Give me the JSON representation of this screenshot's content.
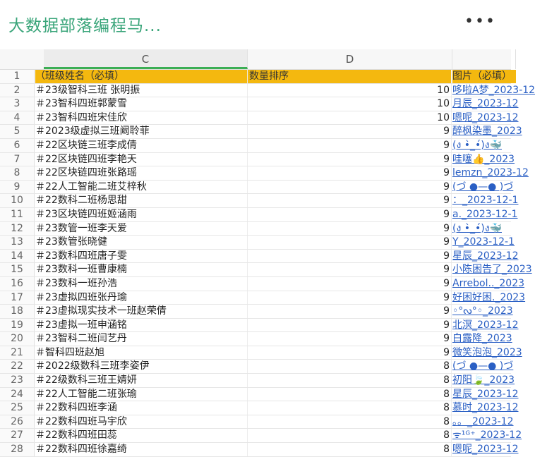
{
  "header": {
    "title": "大数据部落编程马...",
    "more_label": "•••"
  },
  "columns": {
    "c": "C",
    "d": "D"
  },
  "colors": {
    "title": "#3aa57a",
    "header_row": "#f4b80f",
    "link": "#2a5fc4",
    "selected_col": "#3cae55"
  },
  "rows": [
    {
      "n": "1",
      "c": "（班级姓名（必填）",
      "d": "数量排序",
      "e": "图片（必填）"
    },
    {
      "n": "2",
      "c": "＃23级智科三班 张明振",
      "d": "10",
      "e": "哆啦A梦_2023-12"
    },
    {
      "n": "3",
      "c": "＃23智科四班郭蒙雪",
      "d": "10",
      "e": "月辰_2023-12"
    },
    {
      "n": "4",
      "c": "＃23智科四班宋佳欣",
      "d": "10",
      "e": "嗯呢_2023-12"
    },
    {
      "n": "5",
      "c": "＃2023级虚拟三班阚聆菲",
      "d": "9",
      "e": "醉枫染墨_2023"
    },
    {
      "n": "6",
      "c": "＃22区块链三班李成倩",
      "d": "9",
      "e": "(ง •̀_•́)ง🐳"
    },
    {
      "n": "7",
      "c": "＃22区块链四班李艳天",
      "d": "9",
      "e": "哇噻👍_2023"
    },
    {
      "n": "8",
      "c": "＃22区块链四班张路瑶",
      "d": "9",
      "e": "lemzn_2023-12"
    },
    {
      "n": "9",
      "c": "＃22人工智能二班艾梓秋",
      "d": "9",
      "e": "(づ ●—● )づ"
    },
    {
      "n": "10",
      "c": "＃22数科二班杨思甜",
      "d": "9",
      "e": "：_2023-12-1"
    },
    {
      "n": "11",
      "c": "＃23区块链四班姬涵雨",
      "d": "9",
      "e": "a._2023-12-1"
    },
    {
      "n": "12",
      "c": "＃23数管一班李天爱",
      "d": "9",
      "e": "(ง •̀_•́)ง🐳"
    },
    {
      "n": "13",
      "c": "＃23数管张晓健",
      "d": "9",
      "e": "Y_2023-12-1"
    },
    {
      "n": "14",
      "c": "＃23数科四班唐子雯",
      "d": "9",
      "e": "星辰_2023-12"
    },
    {
      "n": "15",
      "c": "＃23数科一班曹康楠",
      "d": "9",
      "e": "小陈困告了_2023"
    },
    {
      "n": "16",
      "c": "＃23数科一班孙浩",
      "d": "9",
      "e": "Arrebol.._2023"
    },
    {
      "n": "17",
      "c": "＃23虚拟四班张丹瑜",
      "d": "9",
      "e": "好困好困._2023"
    },
    {
      "n": "18",
      "c": "＃23虚拟现实技术一班赵荣倩",
      "d": "9",
      "e": "◦°ᔓ°◦_2023"
    },
    {
      "n": "19",
      "c": "＃23虚拟一班申涵铭",
      "d": "9",
      "e": "北溟_2023-12"
    },
    {
      "n": "20",
      "c": "＃23智科二班闫艺丹",
      "d": "9",
      "e": "白露降_2023"
    },
    {
      "n": "21",
      "c": "＃智科四班赵旭",
      "d": "9",
      "e": "微笑泡泡_2023"
    },
    {
      "n": "22",
      "c": "＃2022级数科三班李姿伊",
      "d": "8",
      "e": "(づ ●—● )づ"
    },
    {
      "n": "23",
      "c": "＃22级数科三班王婧妍",
      "d": "8",
      "e": "初阳🍃_2023"
    },
    {
      "n": "24",
      "c": "＃22人工智能二班张瑜",
      "d": "8",
      "e": "星辰_2023-12"
    },
    {
      "n": "25",
      "c": "＃22数科四班李涵",
      "d": "8",
      "e": "慕时_2023-12"
    },
    {
      "n": "26",
      "c": "＃22数科四班马宇欣",
      "d": "8",
      "e": "。。_2023-12"
    },
    {
      "n": "27",
      "c": "＃22数科四班田蕊",
      "d": "8",
      "e": "ᯤ¹ᴳ⁺_2023-12"
    },
    {
      "n": "28",
      "c": "＃22数科四班徐嘉绮",
      "d": "8",
      "e": "嗯呢_2023-12"
    }
  ]
}
